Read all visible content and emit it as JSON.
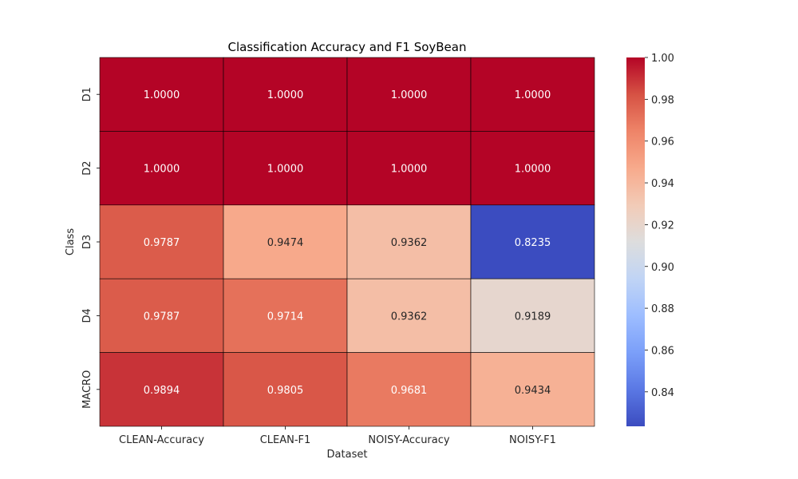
{
  "chart_data": {
    "type": "heatmap",
    "title": "Classification Accuracy and F1 SoyBean",
    "xlabel": "Dataset",
    "ylabel": "Class",
    "x_categories": [
      "CLEAN-Accuracy",
      "CLEAN-F1",
      "NOISY-Accuracy",
      "NOISY-F1"
    ],
    "y_categories": [
      "D1",
      "D2",
      "D3",
      "D4",
      "MACRO"
    ],
    "values": [
      [
        1.0,
        1.0,
        1.0,
        1.0
      ],
      [
        1.0,
        1.0,
        1.0,
        1.0
      ],
      [
        0.9787,
        0.9474,
        0.9362,
        0.8235
      ],
      [
        0.9787,
        0.9714,
        0.9362,
        0.9189
      ],
      [
        0.9894,
        0.9805,
        0.9681,
        0.9434
      ]
    ],
    "value_labels": [
      [
        "1.0000",
        "1.0000",
        "1.0000",
        "1.0000"
      ],
      [
        "1.0000",
        "1.0000",
        "1.0000",
        "1.0000"
      ],
      [
        "0.9787",
        "0.9474",
        "0.9362",
        "0.8235"
      ],
      [
        "0.9787",
        "0.9714",
        "0.9362",
        "0.9189"
      ],
      [
        "0.9894",
        "0.9805",
        "0.9681",
        "0.9434"
      ]
    ],
    "colormap": "coolwarm",
    "color_range": [
      0.8235,
      1.0
    ],
    "colorbar_ticks": [
      "0.84",
      "0.86",
      "0.88",
      "0.90",
      "0.92",
      "0.94",
      "0.96",
      "0.98",
      "1.00"
    ],
    "colorbar_tick_values": [
      0.84,
      0.86,
      0.88,
      0.9,
      0.92,
      0.94,
      0.96,
      0.98,
      1.0
    ],
    "grid": false,
    "cell_border_color": "#000000"
  }
}
